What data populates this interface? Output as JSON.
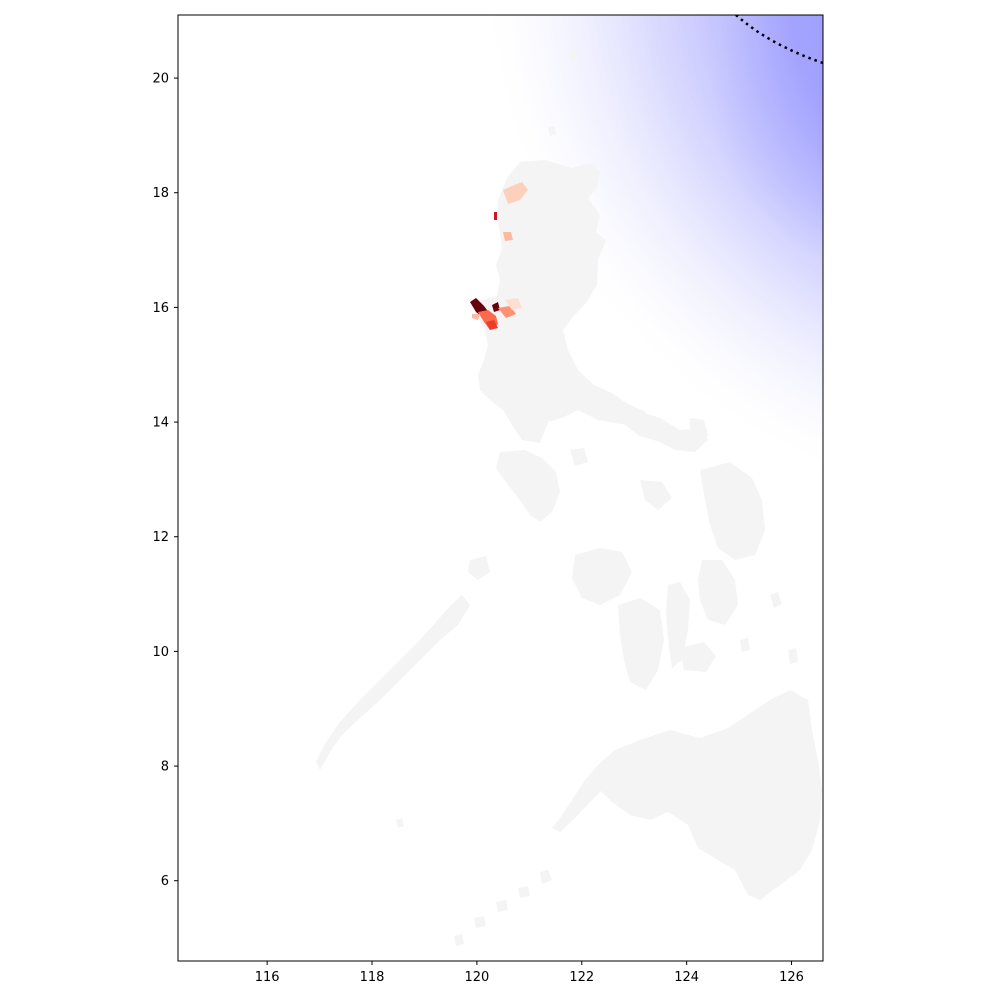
{
  "map": {
    "x_ticks": [
      "116",
      "118",
      "120",
      "122",
      "124",
      "126"
    ],
    "y_ticks": [
      "6",
      "8",
      "10",
      "12",
      "14",
      "16",
      "18",
      "20"
    ],
    "x_range": [
      114.3,
      126.6
    ],
    "y_range": [
      4.6,
      21.1
    ],
    "colors": {
      "land": "#f4f4f4",
      "storm_field": "#9b9bff",
      "track_line": "#000000",
      "impact_dark": "#67000d",
      "impact_mid": "#fb6a4a",
      "impact_light": "#fcbba1"
    },
    "layers": [
      "land",
      "storm-intensity-field",
      "storm-track-dotted",
      "impact-choropleth"
    ]
  }
}
